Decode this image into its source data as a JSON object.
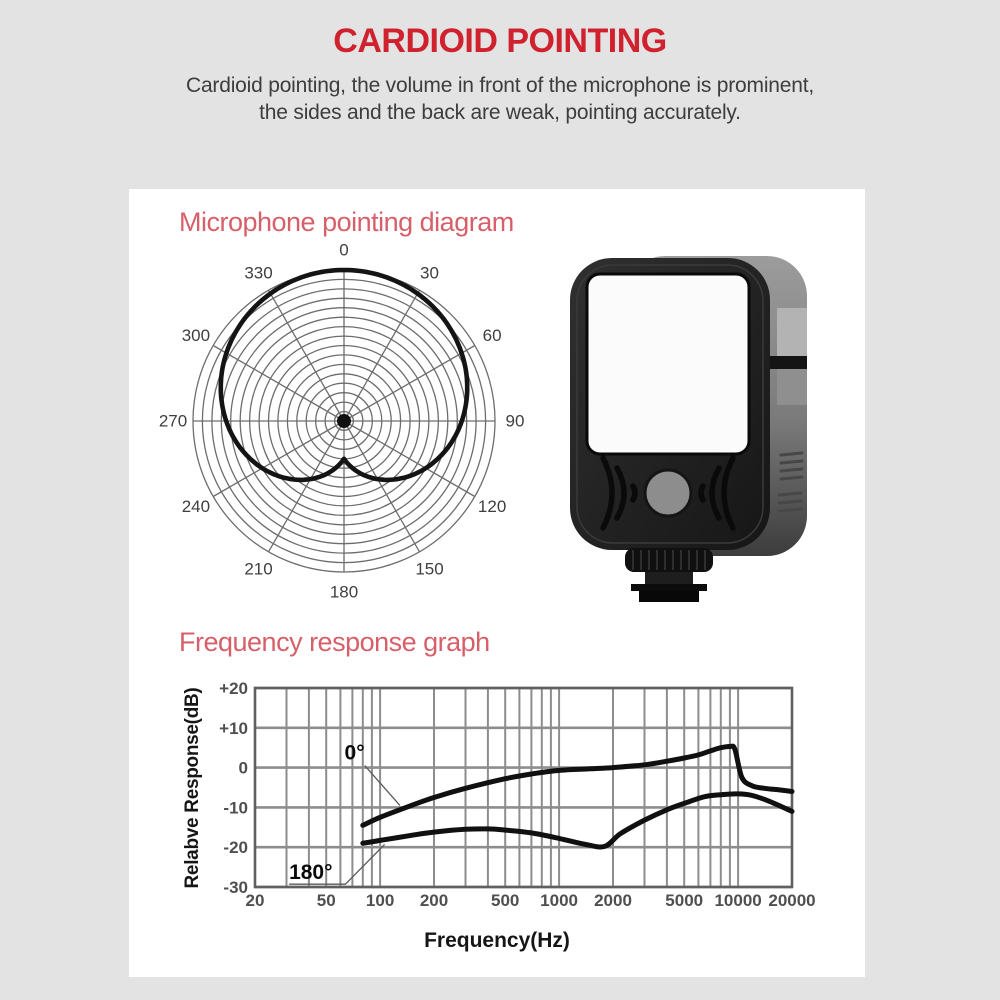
{
  "header": {
    "title": "CARDIOID POINTING",
    "subtitle_line1": "Cardioid pointing, the volume in front of the microphone is prominent,",
    "subtitle_line2": "the sides and the back are weak, pointing accurately."
  },
  "colors": {
    "page_bg": "#e3e3e3",
    "card_bg": "#ffffff",
    "title_red": "#d0212e",
    "heading_red": "#d75f69",
    "text_dark": "#3d3d3d",
    "grid_gray": "#8d8d8d",
    "polar_grid_gray": "#6d6d6d",
    "curve_black": "#141414",
    "axis_label_gray": "#4f4f4f"
  },
  "chart_data": [
    {
      "type": "line",
      "variant": "polar",
      "title": "Microphone pointing diagram",
      "pattern": "cardioid",
      "angle_ticks_deg": [
        "0",
        "30",
        "60",
        "90",
        "120",
        "150",
        "180",
        "210",
        "240",
        "270",
        "300",
        "330"
      ],
      "grid_rings": 16,
      "r_model": {
        "base": 0.25,
        "lobe": 0.75,
        "formula": "r = base + lobe*|cos(theta/2)|"
      },
      "points_deg_r": [
        [
          0,
          1.0
        ],
        [
          15,
          0.99
        ],
        [
          30,
          0.97
        ],
        [
          45,
          0.94
        ],
        [
          60,
          0.9
        ],
        [
          75,
          0.85
        ],
        [
          90,
          0.78
        ],
        [
          105,
          0.71
        ],
        [
          120,
          0.63
        ],
        [
          135,
          0.54
        ],
        [
          150,
          0.44
        ],
        [
          165,
          0.35
        ],
        [
          180,
          0.25
        ],
        [
          195,
          0.35
        ],
        [
          210,
          0.44
        ],
        [
          225,
          0.54
        ],
        [
          240,
          0.63
        ],
        [
          255,
          0.71
        ],
        [
          270,
          0.78
        ],
        [
          285,
          0.85
        ],
        [
          300,
          0.9
        ],
        [
          315,
          0.94
        ],
        [
          330,
          0.97
        ],
        [
          345,
          0.99
        ],
        [
          360,
          1.0
        ]
      ]
    },
    {
      "type": "line",
      "title": "Frequency response graph",
      "x_scale": "log",
      "xlabel": "Frequency(Hz)",
      "ylabel": "Relabve Response(dB)",
      "xlim": [
        20,
        20000
      ],
      "ylim": [
        -30,
        20
      ],
      "x_ticks": [
        20,
        50,
        100,
        200,
        500,
        1000,
        2000,
        5000,
        10000,
        20000
      ],
      "y_ticks": [
        20,
        10,
        0,
        -10,
        -20,
        -30
      ],
      "y_tick_labels": [
        "+20",
        "+10",
        "0",
        "-10",
        "-20",
        "-30"
      ],
      "grid": "log-minor",
      "series": [
        {
          "name": "0°",
          "x": [
            80,
            100,
            150,
            200,
            300,
            500,
            700,
            1000,
            1500,
            2000,
            3000,
            4000,
            5000,
            6000,
            7000,
            8000,
            9000,
            9600,
            10500,
            12000,
            14000,
            17000,
            20000
          ],
          "y": [
            -14.5,
            -12.5,
            -9.5,
            -7.5,
            -5.2,
            -2.8,
            -1.6,
            -0.7,
            -0.3,
            0,
            0.7,
            1.6,
            2.4,
            3.2,
            4.2,
            5.0,
            5.3,
            4.6,
            -2.5,
            -4.6,
            -5.2,
            -5.6,
            -6.0
          ]
        },
        {
          "name": "180°",
          "x": [
            80,
            100,
            150,
            200,
            300,
            400,
            500,
            700,
            1000,
            1400,
            1800,
            2200,
            3000,
            4000,
            5000,
            6500,
            8000,
            10000,
            12000,
            15000,
            20000
          ],
          "y": [
            -19.0,
            -18.3,
            -17.0,
            -16.2,
            -15.5,
            -15.4,
            -15.7,
            -16.4,
            -17.8,
            -19.3,
            -19.8,
            -16.6,
            -13.2,
            -10.6,
            -9.0,
            -7.3,
            -6.8,
            -6.6,
            -7.0,
            -8.5,
            -11.0
          ]
        }
      ],
      "annotations": [
        {
          "text": "0°",
          "text_pos": [
            72,
            3.8
          ],
          "leader": [
            [
              82,
              0.5
            ],
            [
              129,
              -9.5
            ]
          ]
        },
        {
          "text": "180°",
          "text_pos": [
            41,
            -26.2
          ],
          "leader": [
            [
              31,
              -29.3
            ],
            [
              64,
              -29.3
            ],
            [
              106,
              -19.3
            ]
          ]
        }
      ]
    }
  ]
}
